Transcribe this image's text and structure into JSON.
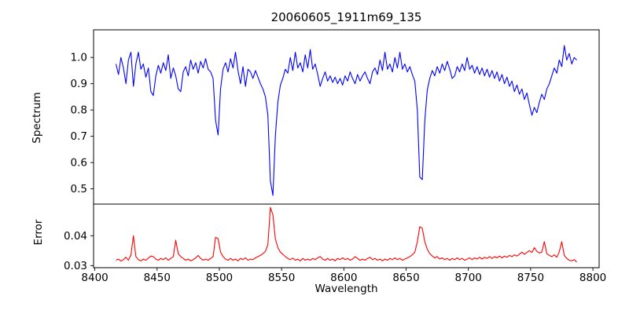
{
  "figure": {
    "title": "20060605_1911m69_135",
    "background": "#ffffff",
    "frame_color": "#000000"
  },
  "chart_data": [
    {
      "type": "line",
      "panel": "spectrum",
      "title": "20060605_1911m69_135",
      "ylabel": "Spectrum",
      "legend": "none",
      "grid": false,
      "line_color": "#0000ff",
      "xlim": [
        8399,
        8805
      ],
      "ylim": [
        0.442,
        1.105
      ],
      "ytick_values": [
        0.5,
        0.6,
        0.7,
        0.8,
        0.9,
        1.0
      ],
      "ytick_labels": [
        "0.5",
        "0.6",
        "0.7",
        "0.8",
        "0.9",
        "1.0"
      ],
      "x_start": 8417,
      "x_step": 2,
      "features_note": "absorption lines near 8430, 8446, 8468, 8498, 8542, 8662, broad dip ~8750",
      "values": [
        0.975,
        0.935,
        1.0,
        0.96,
        0.9,
        0.99,
        1.02,
        0.89,
        0.975,
        1.02,
        0.955,
        0.975,
        0.925,
        0.96,
        0.87,
        0.855,
        0.93,
        0.97,
        0.94,
        0.98,
        0.95,
        1.01,
        0.92,
        0.96,
        0.93,
        0.88,
        0.87,
        0.945,
        0.965,
        0.93,
        0.99,
        0.955,
        0.98,
        0.94,
        0.985,
        0.96,
        0.995,
        0.955,
        0.945,
        0.92,
        0.76,
        0.705,
        0.88,
        0.955,
        0.98,
        0.945,
        0.995,
        0.96,
        1.02,
        0.95,
        0.9,
        0.965,
        0.89,
        0.955,
        0.945,
        0.92,
        0.95,
        0.925,
        0.9,
        0.88,
        0.85,
        0.78,
        0.53,
        0.475,
        0.7,
        0.83,
        0.895,
        0.92,
        0.955,
        0.94,
        1.0,
        0.95,
        1.02,
        0.96,
        0.98,
        0.945,
        1.01,
        0.96,
        1.03,
        0.955,
        0.975,
        0.935,
        0.89,
        0.92,
        0.945,
        0.91,
        0.93,
        0.905,
        0.925,
        0.9,
        0.92,
        0.895,
        0.93,
        0.91,
        0.945,
        0.92,
        0.9,
        0.935,
        0.91,
        0.93,
        0.945,
        0.92,
        0.9,
        0.945,
        0.96,
        0.935,
        0.99,
        0.95,
        1.02,
        0.955,
        0.975,
        0.945,
        1.0,
        0.96,
        1.02,
        0.955,
        0.975,
        0.945,
        0.965,
        0.935,
        0.91,
        0.8,
        0.545,
        0.535,
        0.76,
        0.875,
        0.92,
        0.95,
        0.93,
        0.965,
        0.94,
        0.975,
        0.95,
        0.985,
        0.955,
        0.92,
        0.93,
        0.965,
        0.945,
        0.975,
        0.95,
        1.0,
        0.955,
        0.97,
        0.94,
        0.965,
        0.935,
        0.96,
        0.93,
        0.955,
        0.925,
        0.95,
        0.92,
        0.945,
        0.91,
        0.935,
        0.9,
        0.925,
        0.89,
        0.91,
        0.87,
        0.895,
        0.86,
        0.88,
        0.84,
        0.865,
        0.82,
        0.78,
        0.81,
        0.79,
        0.83,
        0.86,
        0.84,
        0.88,
        0.9,
        0.93,
        0.96,
        0.94,
        0.99,
        0.965,
        1.045,
        0.99,
        1.015,
        0.975,
        1.0,
        0.99
      ]
    },
    {
      "type": "line",
      "panel": "error",
      "ylabel": "Error",
      "xlabel": "Wavelength",
      "legend": "none",
      "grid": false,
      "line_color": "#ff0000",
      "xlim": [
        8399,
        8805
      ],
      "ylim": [
        0.0293,
        0.0506
      ],
      "ytick_values": [
        0.03,
        0.04
      ],
      "ytick_labels": [
        "0.03",
        "0.04"
      ],
      "xtick_values": [
        8400,
        8450,
        8500,
        8550,
        8600,
        8650,
        8700,
        8750,
        8800
      ],
      "xtick_labels": [
        "8400",
        "8450",
        "8500",
        "8550",
        "8600",
        "8650",
        "8700",
        "8750",
        "8800"
      ],
      "x_start": 8417,
      "x_step": 2,
      "features_note": "error spikes at 8430, 8465, 8498, 8542 (max ~0.049), 8662, 8761, 8775",
      "values": [
        0.0318,
        0.0322,
        0.0315,
        0.032,
        0.0328,
        0.0318,
        0.0335,
        0.04,
        0.033,
        0.032,
        0.0316,
        0.0322,
        0.0318,
        0.0325,
        0.0332,
        0.033,
        0.0322,
        0.0318,
        0.0324,
        0.032,
        0.0326,
        0.0318,
        0.0324,
        0.033,
        0.0385,
        0.034,
        0.033,
        0.0324,
        0.0318,
        0.0322,
        0.0316,
        0.032,
        0.0326,
        0.0334,
        0.0324,
        0.0318,
        0.0322,
        0.0318,
        0.0324,
        0.033,
        0.0395,
        0.039,
        0.0345,
        0.033,
        0.0322,
        0.0318,
        0.0324,
        0.0318,
        0.0322,
        0.0316,
        0.0324,
        0.032,
        0.0326,
        0.0318,
        0.0322,
        0.032,
        0.0326,
        0.033,
        0.0334,
        0.034,
        0.0348,
        0.037,
        0.0495,
        0.047,
        0.039,
        0.036,
        0.0345,
        0.0338,
        0.033,
        0.0324,
        0.032,
        0.0325,
        0.0318,
        0.0322,
        0.0316,
        0.0324,
        0.0318,
        0.0322,
        0.0318,
        0.0324,
        0.032,
        0.0326,
        0.033,
        0.0322,
        0.0318,
        0.0324,
        0.0318,
        0.0322,
        0.0316,
        0.0324,
        0.032,
        0.0326,
        0.032,
        0.0324,
        0.0318,
        0.0322,
        0.033,
        0.0324,
        0.0318,
        0.0322,
        0.0318,
        0.0324,
        0.0328,
        0.032,
        0.0324,
        0.0318,
        0.0322,
        0.0316,
        0.0322,
        0.0318,
        0.0324,
        0.032,
        0.0326,
        0.032,
        0.0324,
        0.0318,
        0.0322,
        0.0326,
        0.033,
        0.0336,
        0.0345,
        0.038,
        0.043,
        0.0425,
        0.038,
        0.0355,
        0.034,
        0.0332,
        0.0326,
        0.033,
        0.0322,
        0.0326,
        0.032,
        0.0324,
        0.0318,
        0.0324,
        0.032,
        0.0326,
        0.032,
        0.0324,
        0.0318,
        0.0322,
        0.0326,
        0.032,
        0.0326,
        0.0322,
        0.0328,
        0.0322,
        0.0328,
        0.0324,
        0.033,
        0.0324,
        0.033,
        0.0326,
        0.0332,
        0.0326,
        0.0332,
        0.0328,
        0.0334,
        0.033,
        0.0336,
        0.0332,
        0.0338,
        0.0345,
        0.0338,
        0.0344,
        0.035,
        0.0344,
        0.036,
        0.0348,
        0.0342,
        0.0345,
        0.038,
        0.034,
        0.0334,
        0.033,
        0.0336,
        0.0328,
        0.0346,
        0.038,
        0.0334,
        0.0324,
        0.0318,
        0.0316,
        0.032,
        0.0312
      ]
    }
  ]
}
